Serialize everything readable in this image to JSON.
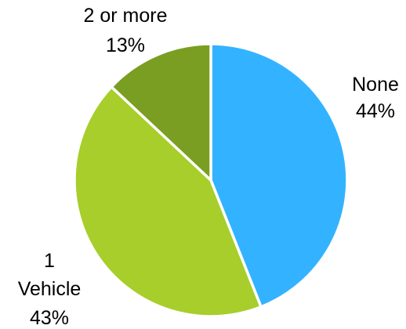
{
  "chart_data": {
    "type": "pie",
    "start_angle_deg": 0,
    "direction": "clockwise",
    "slices": [
      {
        "label": "None",
        "value": 44,
        "percent_label": "44%",
        "color": "#33B3FF"
      },
      {
        "label": "1 Vehicle",
        "value": 43,
        "percent_label": "43%",
        "color": "#A7CE2A"
      },
      {
        "label": "2 or more",
        "value": 13,
        "percent_label": "13%",
        "color": "#7A9E21"
      }
    ],
    "legend": "none"
  }
}
